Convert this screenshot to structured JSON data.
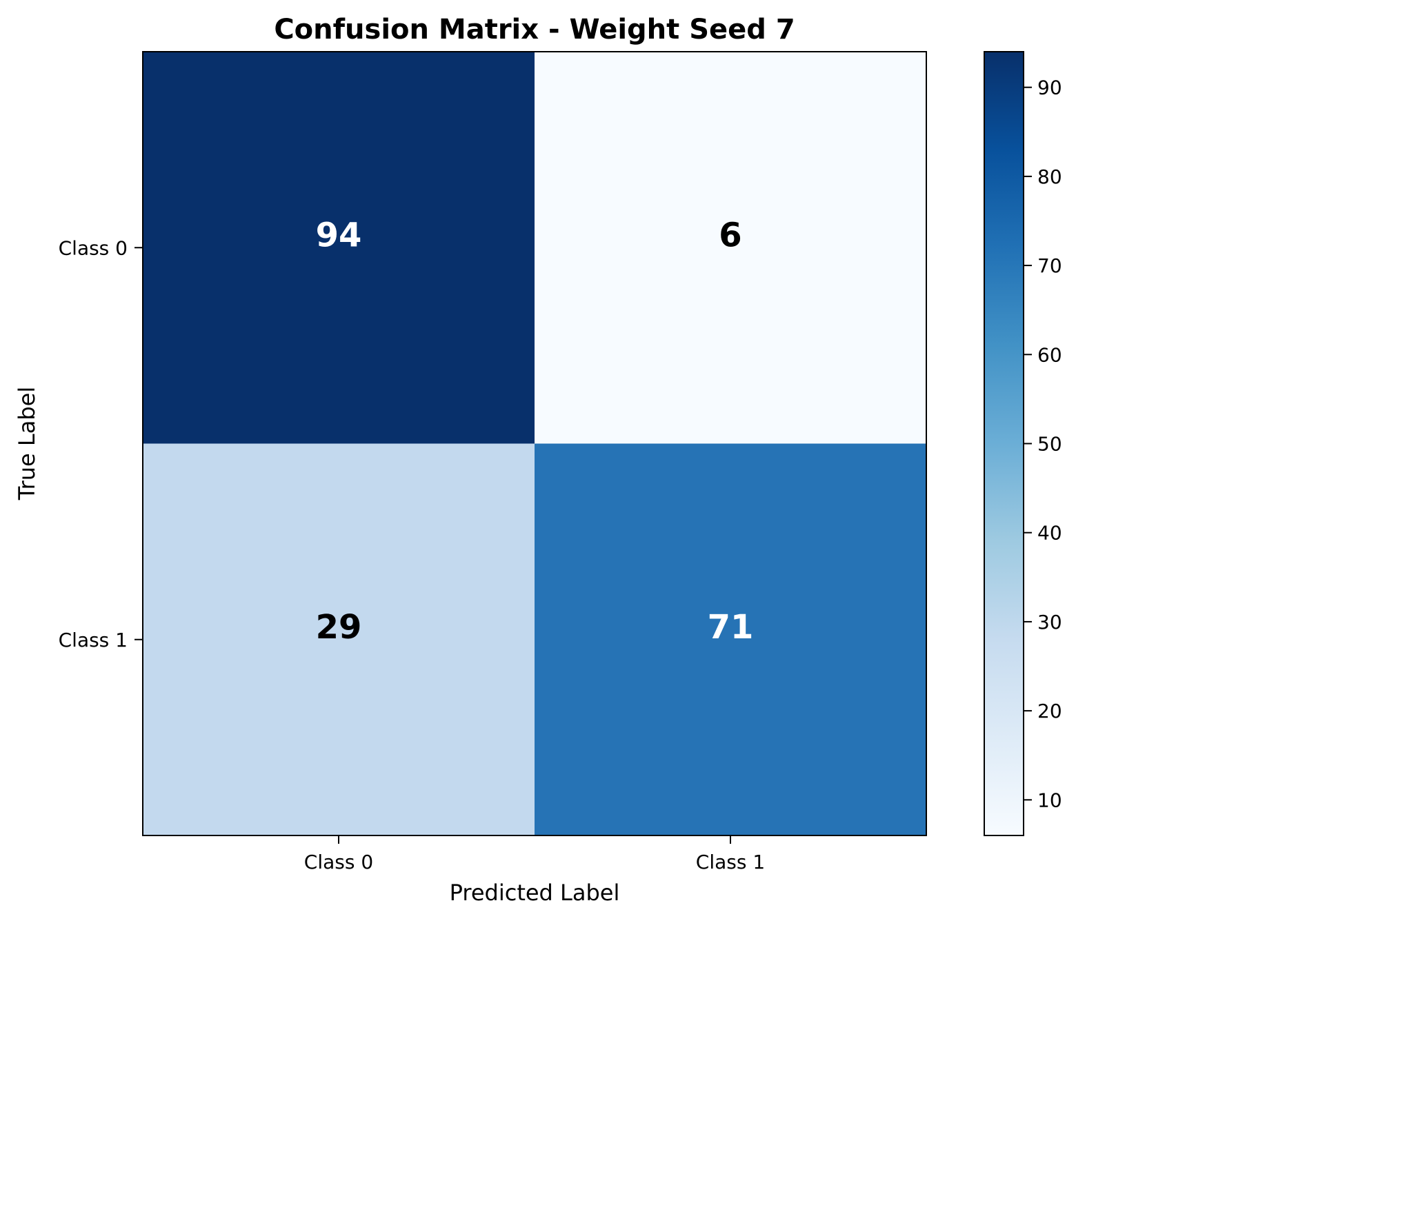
{
  "chart_data": {
    "type": "heatmap",
    "title": "Confusion Matrix - Weight Seed 7",
    "xlabel": "Predicted Label",
    "ylabel": "True Label",
    "x_categories": [
      "Class 0",
      "Class 1"
    ],
    "y_categories": [
      "Class 0",
      "Class 1"
    ],
    "values": [
      [
        94,
        6
      ],
      [
        29,
        71
      ]
    ],
    "colormap": "Blues",
    "color_range": [
      6,
      94
    ],
    "colorbar_ticks": [
      "10",
      "20",
      "30",
      "40",
      "50",
      "60",
      "70",
      "80",
      "90"
    ],
    "cell_colors": [
      [
        "#08306b",
        "#f7fbff"
      ],
      [
        "#c3d9ee",
        "#2673b5"
      ]
    ],
    "text_colors": [
      [
        "#ffffff",
        "#000000"
      ],
      [
        "#000000",
        "#ffffff"
      ]
    ],
    "colorbar_gradient": [
      "#f7fbff",
      "#deebf7",
      "#c6dbef",
      "#9ecae1",
      "#6baed6",
      "#4292c6",
      "#2171b5",
      "#08519c",
      "#08306b"
    ],
    "grid": false,
    "legend": "colorbar-right"
  }
}
